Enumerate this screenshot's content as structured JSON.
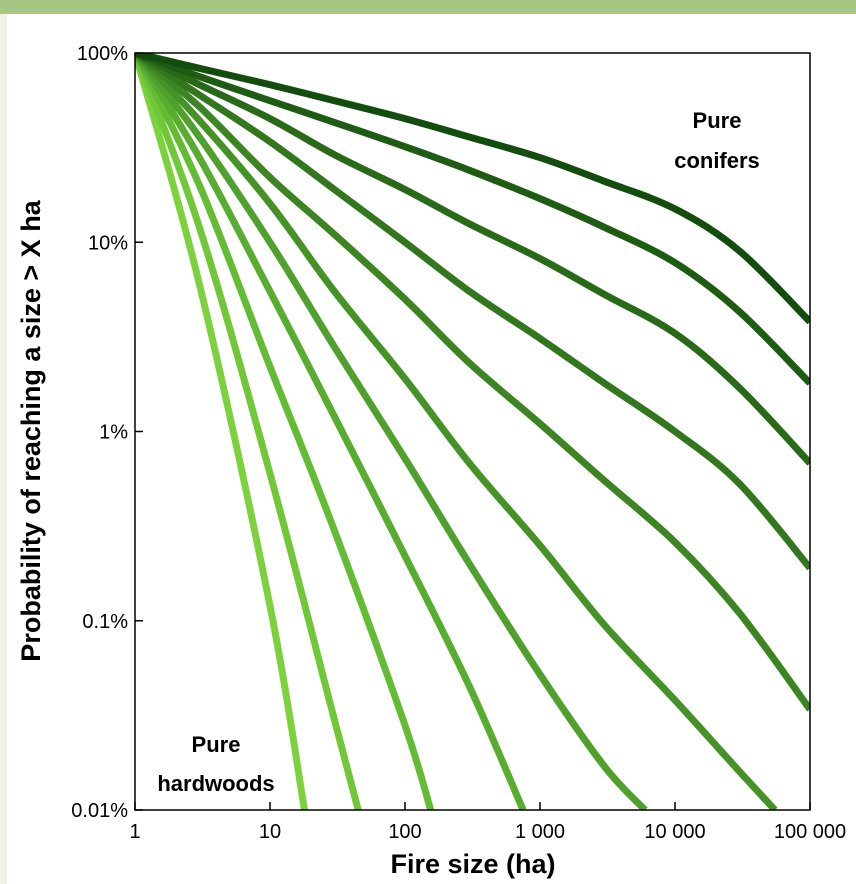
{
  "chart_data": {
    "type": "line",
    "xlabel": "Fire size (ha)",
    "ylabel": "Probability of reaching a size > X ha",
    "x_scale": "log",
    "y_scale": "log",
    "xlim": [
      1,
      100000
    ],
    "ylim": [
      0.0001,
      1
    ],
    "x_ticks": [
      1,
      10,
      100,
      1000,
      10000,
      100000
    ],
    "x_tick_labels": [
      "1",
      "10",
      "100",
      "1 000",
      "10 000",
      "100 000"
    ],
    "y_ticks": [
      0.0001,
      0.001,
      0.01,
      0.1,
      1
    ],
    "y_tick_labels": [
      "0.01%",
      "0.1%",
      "1%",
      "10%",
      "100%"
    ],
    "grid": false,
    "legend": "none",
    "annotations": [
      {
        "id": "conifers",
        "lines": [
          "Pure",
          "conifers"
        ]
      },
      {
        "id": "hardwoods",
        "lines": [
          "Pure",
          "hardwoods"
        ]
      }
    ],
    "series": [
      {
        "color": "#7bd23c",
        "x": [
          1,
          3,
          10,
          18
        ],
        "y": [
          1,
          0.06,
          0.0012,
          0.0001
        ]
      },
      {
        "color": "#70c838",
        "x": [
          1,
          3,
          10,
          30,
          45
        ],
        "y": [
          1,
          0.12,
          0.006,
          0.0003,
          0.0001
        ]
      },
      {
        "color": "#64bb34",
        "x": [
          1,
          3,
          10,
          30,
          100,
          155
        ],
        "y": [
          1,
          0.2,
          0.022,
          0.003,
          0.00028,
          0.0001
        ]
      },
      {
        "color": "#58ad30",
        "x": [
          1,
          3,
          10,
          30,
          100,
          300,
          750
        ],
        "y": [
          1,
          0.28,
          0.055,
          0.012,
          0.0022,
          0.00045,
          0.0001
        ]
      },
      {
        "color": "#4fa02c",
        "x": [
          1,
          3,
          10,
          30,
          100,
          300,
          1000,
          3000,
          6000
        ],
        "y": [
          1,
          0.36,
          0.1,
          0.028,
          0.0072,
          0.002,
          0.00052,
          0.00017,
          0.0001
        ]
      },
      {
        "color": "#459227",
        "x": [
          1,
          3,
          10,
          30,
          100,
          300,
          1000,
          3000,
          10000,
          30000,
          55000
        ],
        "y": [
          1,
          0.44,
          0.16,
          0.055,
          0.019,
          0.0068,
          0.0025,
          0.00095,
          0.00038,
          0.00016,
          0.0001
        ]
      },
      {
        "color": "#3c8522",
        "x": [
          1,
          3,
          10,
          30,
          100,
          300,
          1000,
          3000,
          10000,
          30000,
          100000
        ],
        "y": [
          1,
          0.52,
          0.22,
          0.11,
          0.05,
          0.023,
          0.011,
          0.0055,
          0.0026,
          0.0011,
          0.00034
        ]
      },
      {
        "color": "#32771d",
        "x": [
          1,
          3,
          10,
          30,
          100,
          300,
          1000,
          3000,
          10000,
          30000,
          100000
        ],
        "y": [
          1,
          0.6,
          0.34,
          0.19,
          0.1,
          0.055,
          0.031,
          0.018,
          0.01,
          0.0053,
          0.0019
        ]
      },
      {
        "color": "#296a18",
        "x": [
          1,
          3,
          10,
          30,
          100,
          300,
          1000,
          3000,
          10000,
          30000,
          100000
        ],
        "y": [
          1,
          0.68,
          0.45,
          0.29,
          0.19,
          0.125,
          0.082,
          0.053,
          0.033,
          0.017,
          0.0068
        ]
      },
      {
        "color": "#1e5c13",
        "x": [
          1,
          3,
          10,
          30,
          100,
          300,
          1000,
          3000,
          10000,
          30000,
          100000
        ],
        "y": [
          1,
          0.75,
          0.56,
          0.43,
          0.32,
          0.24,
          0.17,
          0.12,
          0.078,
          0.043,
          0.018
        ]
      },
      {
        "color": "#134d0d",
        "x": [
          1,
          3,
          10,
          30,
          100,
          300,
          1000,
          3000,
          10000,
          30000,
          100000
        ],
        "y": [
          1,
          0.83,
          0.68,
          0.56,
          0.45,
          0.36,
          0.28,
          0.21,
          0.15,
          0.09,
          0.038
        ]
      }
    ]
  }
}
